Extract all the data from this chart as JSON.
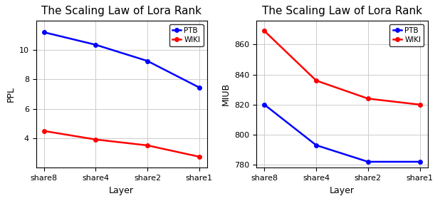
{
  "title": "The Scaling Law of Lora Rank",
  "categories": [
    "share8",
    "share4",
    "share2",
    "share1"
  ],
  "xlabel": "Layer",
  "left": {
    "ylabel": "PPL",
    "ptb": [
      11.2,
      10.35,
      9.25,
      7.45
    ],
    "wiki": [
      4.5,
      3.92,
      3.52,
      2.75
    ],
    "ylim": [
      2.0,
      12.0
    ],
    "yticks": [
      4,
      6,
      8,
      10
    ]
  },
  "right": {
    "ylabel": "MIUB",
    "ptb": [
      820,
      793,
      782,
      782
    ],
    "wiki": [
      869,
      836,
      824,
      820
    ],
    "ylim": [
      778,
      876
    ],
    "yticks": [
      780,
      800,
      820,
      840,
      860
    ]
  },
  "ptb_color": "#0000ff",
  "wiki_color": "#ff0000",
  "marker": "o",
  "markersize": 4,
  "linewidth": 1.8,
  "grid_color": "#cccccc",
  "title_fontsize": 11,
  "label_fontsize": 9,
  "tick_fontsize": 8,
  "legend_fontsize": 7.5,
  "spine_color": "#000000"
}
